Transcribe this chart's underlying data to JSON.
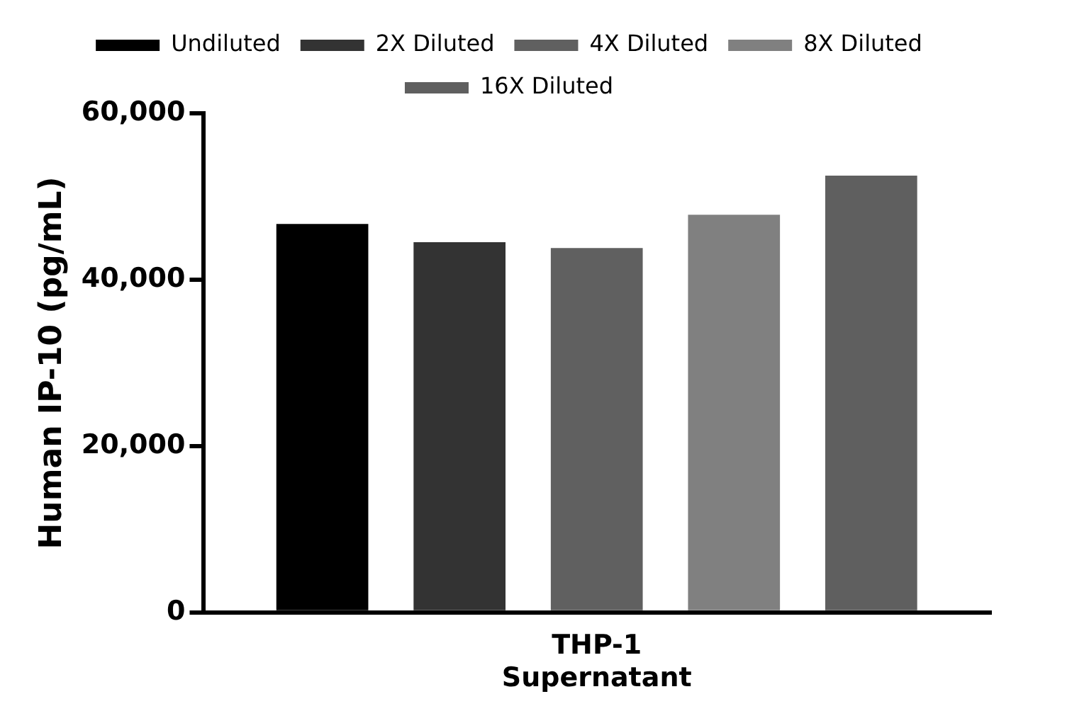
{
  "chart_data": {
    "type": "bar",
    "ylabel": "Human IP-10 (pg/mL)",
    "categories": [
      "THP-1\nSupernatant"
    ],
    "series": [
      {
        "name": "Undiluted",
        "color": "#000000",
        "values": [
          46700
        ]
      },
      {
        "name": "2X Diluted",
        "color": "#333333",
        "values": [
          44500
        ]
      },
      {
        "name": "4X Diluted",
        "color": "#606060",
        "values": [
          43800
        ]
      },
      {
        "name": "8X Diluted",
        "color": "#808080",
        "values": [
          47800
        ]
      },
      {
        "name": "16X Diluted",
        "color": "#5f5f5f",
        "values": [
          52500
        ]
      }
    ],
    "ylim": [
      0,
      60000
    ],
    "yticks": [
      {
        "value": 0,
        "label": "0"
      },
      {
        "value": 20000,
        "label": "20,000"
      },
      {
        "value": 40000,
        "label": "40,000"
      },
      {
        "value": 60000,
        "label": "60,000"
      }
    ],
    "grid": false,
    "legend": "top"
  }
}
